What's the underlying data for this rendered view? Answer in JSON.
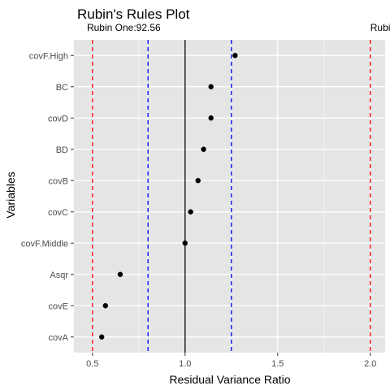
{
  "chart_data": {
    "type": "scatter",
    "title": "Rubin's Rules Plot",
    "xlabel": "Residual Variance Ratio",
    "ylabel": "Variables",
    "xlim": [
      0.4,
      2.08
    ],
    "x_ticks": [
      0.5,
      1.0,
      1.5,
      2.0
    ],
    "x_tick_labels": [
      "0.5",
      "1.0",
      "1.5",
      "2.0"
    ],
    "categories": [
      "covF.High",
      "BC",
      "covD",
      "BD",
      "covB",
      "covC",
      "covF.Middle",
      "Asqr",
      "covE",
      "covA"
    ],
    "values": [
      1.27,
      1.14,
      1.14,
      1.1,
      1.07,
      1.03,
      1.0,
      0.65,
      0.57,
      0.55
    ],
    "reference_lines": [
      {
        "x": 0.5,
        "color": "#ff0000",
        "style": "dashed"
      },
      {
        "x": 2.0,
        "color": "#ff0000",
        "style": "dashed"
      },
      {
        "x": 0.8,
        "color": "#0000ff",
        "style": "dashed"
      },
      {
        "x": 1.25,
        "color": "#0000ff",
        "style": "dashed"
      },
      {
        "x": 1.0,
        "color": "#000000",
        "style": "solid"
      }
    ],
    "annotations": [
      {
        "text": "Rubin One:92.56",
        "x": 0.47
      },
      {
        "text": "Rubin Tw",
        "x": 2.0
      }
    ],
    "grid": true,
    "panel_background": "#e5e5e5",
    "grid_color": "#ffffff"
  }
}
